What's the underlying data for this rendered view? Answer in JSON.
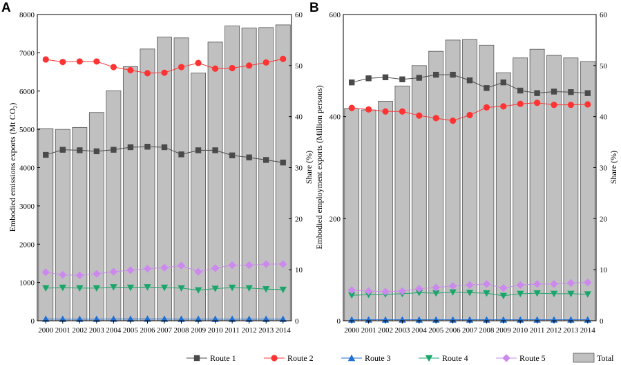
{
  "legend": {
    "entries": [
      "Route 1",
      "Route 2",
      "Route 3",
      "Route 4",
      "Route 5",
      "Total"
    ]
  },
  "colors": {
    "total_fill": "#c0c0c0",
    "total_stroke": "#555555",
    "route1": "#4a4a4a",
    "route2": "#ff3333",
    "route3": "#1f6fd6",
    "route4": "#1aa66b",
    "route5": "#cc88ee"
  },
  "chart_data": [
    {
      "panel": "A",
      "type": "bar",
      "categories": [
        "2000",
        "2001",
        "2002",
        "2003",
        "2004",
        "2005",
        "2006",
        "2007",
        "2008",
        "2009",
        "2010",
        "2011",
        "2012",
        "2013",
        "2014"
      ],
      "ylabel_left": "Embodied emissions exports (Mt CO₂)",
      "ylabel_right": "Share (%)",
      "ylim_left": [
        0,
        8000
      ],
      "yticks_left": [
        0,
        1000,
        2000,
        3000,
        4000,
        5000,
        6000,
        7000,
        8000
      ],
      "ylim_right": [
        0,
        60
      ],
      "yticks_right": [
        0,
        10,
        20,
        30,
        40,
        50,
        60
      ],
      "series": [
        {
          "name": "Total",
          "kind": "bar",
          "axis": "left",
          "values": [
            5020,
            5000,
            5050,
            5440,
            6010,
            6640,
            7100,
            7410,
            7390,
            6470,
            7280,
            7700,
            7650,
            7660,
            7730
          ]
        },
        {
          "name": "Route 1",
          "kind": "line",
          "axis": "right",
          "marker": "square",
          "values": [
            32.5,
            33.5,
            33.4,
            33.2,
            33.5,
            34.0,
            34.1,
            34.0,
            32.6,
            33.4,
            33.4,
            32.4,
            32.0,
            31.5,
            31.0
          ]
        },
        {
          "name": "Route 2",
          "kind": "line",
          "axis": "right",
          "marker": "circle",
          "values": [
            51.2,
            50.7,
            50.8,
            50.8,
            49.7,
            49.1,
            48.5,
            48.6,
            49.7,
            50.5,
            49.4,
            49.5,
            50.0,
            50.6,
            51.3
          ]
        },
        {
          "name": "Route 3",
          "kind": "line",
          "axis": "right",
          "marker": "triangle-up",
          "values": [
            0.35,
            0.33,
            0.33,
            0.33,
            0.35,
            0.35,
            0.36,
            0.35,
            0.33,
            0.34,
            0.33,
            0.33,
            0.33,
            0.33,
            0.33
          ]
        },
        {
          "name": "Route 4",
          "kind": "line",
          "axis": "right",
          "marker": "triangle-down",
          "values": [
            6.4,
            6.5,
            6.4,
            6.4,
            6.6,
            6.5,
            6.6,
            6.5,
            6.4,
            6.0,
            6.3,
            6.5,
            6.4,
            6.2,
            6.1
          ]
        },
        {
          "name": "Route 5",
          "kind": "line",
          "axis": "right",
          "marker": "diamond",
          "values": [
            9.5,
            9.0,
            8.9,
            9.2,
            9.6,
            9.9,
            10.2,
            10.4,
            10.8,
            9.6,
            10.3,
            10.9,
            10.9,
            11.1,
            11.1
          ]
        }
      ]
    },
    {
      "panel": "B",
      "type": "bar",
      "categories": [
        "2000",
        "2001",
        "2002",
        "2003",
        "2004",
        "2005",
        "2006",
        "2007",
        "2008",
        "2009",
        "2010",
        "2011",
        "2012",
        "2013",
        "2014"
      ],
      "ylabel_left": "Embodied employment exports (Million persons)",
      "ylabel_right": "Share (%)",
      "ylim_left": [
        0,
        600
      ],
      "yticks_left": [
        0,
        200,
        400,
        600
      ],
      "ylim_right": [
        0,
        60
      ],
      "yticks_right": [
        0,
        10,
        20,
        30,
        40,
        50,
        60
      ],
      "series": [
        {
          "name": "Total",
          "kind": "bar",
          "axis": "left",
          "values": [
            416,
            413,
            430,
            460,
            500,
            528,
            550,
            551,
            540,
            486,
            515,
            532,
            520,
            515,
            508
          ]
        },
        {
          "name": "Route 1",
          "kind": "line",
          "axis": "right",
          "marker": "square",
          "values": [
            46.7,
            47.5,
            47.7,
            47.3,
            47.6,
            48.2,
            48.2,
            47.1,
            45.6,
            46.7,
            45.1,
            44.6,
            44.9,
            44.8,
            44.6
          ]
        },
        {
          "name": "Route 2",
          "kind": "line",
          "axis": "right",
          "marker": "circle",
          "values": [
            41.7,
            41.4,
            41.0,
            41.0,
            40.2,
            39.7,
            39.2,
            40.3,
            41.8,
            42.0,
            42.5,
            42.7,
            42.3,
            42.3,
            42.4
          ]
        },
        {
          "name": "Route 3",
          "kind": "line",
          "axis": "right",
          "marker": "triangle-up",
          "values": [
            0.2,
            0.2,
            0.2,
            0.2,
            0.2,
            0.2,
            0.2,
            0.2,
            0.2,
            0.2,
            0.2,
            0.2,
            0.2,
            0.2,
            0.2
          ]
        },
        {
          "name": "Route 4",
          "kind": "line",
          "axis": "right",
          "marker": "triangle-down",
          "values": [
            5.0,
            5.1,
            5.2,
            5.3,
            5.5,
            5.4,
            5.6,
            5.5,
            5.4,
            4.9,
            5.3,
            5.4,
            5.3,
            5.3,
            5.2
          ]
        },
        {
          "name": "Route 5",
          "kind": "line",
          "axis": "right",
          "marker": "diamond",
          "values": [
            6.0,
            5.8,
            5.7,
            5.8,
            6.3,
            6.5,
            6.8,
            7.0,
            7.2,
            6.4,
            7.0,
            7.2,
            7.2,
            7.4,
            7.5
          ]
        }
      ]
    }
  ]
}
